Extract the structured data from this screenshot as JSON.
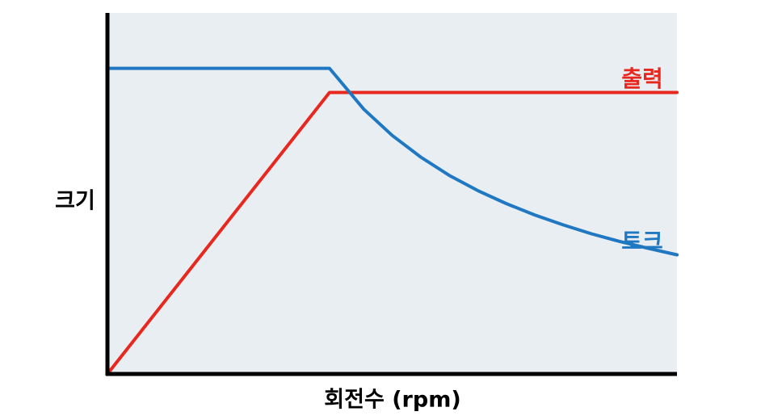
{
  "chart_data": {
    "type": "line",
    "title": "",
    "xlabel": "회전수 (rpm)",
    "ylabel": "크기",
    "xlim": [
      0,
      1
    ],
    "ylim": [
      0,
      1
    ],
    "grid": false,
    "legend": "inline-right",
    "background_color": "#e9eef2",
    "axis_color": "#000000",
    "series": [
      {
        "name": "출력",
        "color": "#e8281e",
        "x": [
          0,
          0.39,
          1.0
        ],
        "y": [
          0,
          0.91,
          0.91
        ]
      },
      {
        "name": "토크",
        "color": "#1f78c1",
        "x": [
          0,
          0.39,
          0.45,
          0.5,
          0.55,
          0.6,
          0.65,
          0.7,
          0.75,
          0.8,
          0.85,
          0.9,
          0.95,
          1.0
        ],
        "y": [
          0.988,
          0.988,
          0.856,
          0.771,
          0.701,
          0.642,
          0.593,
          0.551,
          0.514,
          0.482,
          0.453,
          0.428,
          0.406,
          0.385
        ]
      }
    ]
  }
}
